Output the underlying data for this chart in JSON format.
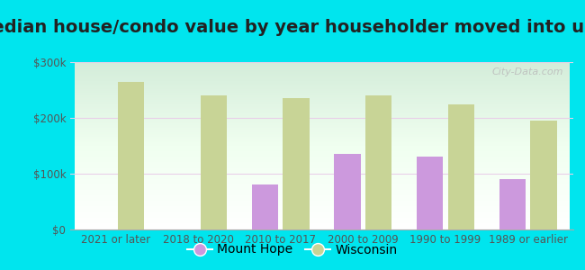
{
  "title": "Median house/condo value by year householder moved into unit",
  "categories": [
    "2021 or later",
    "2018 to 2020",
    "2010 to 2017",
    "2000 to 2009",
    "1990 to 1999",
    "1989 or earlier"
  ],
  "mount_hope": [
    null,
    null,
    80000,
    135000,
    130000,
    90000
  ],
  "wisconsin": [
    265000,
    240000,
    235000,
    240000,
    225000,
    195000
  ],
  "mount_hope_color": "#cc99dd",
  "wisconsin_color": "#c8d496",
  "background_outer": "#00e5ee",
  "ylim": [
    0,
    300000
  ],
  "yticks": [
    0,
    100000,
    200000,
    300000
  ],
  "ytick_labels": [
    "$0",
    "$100k",
    "$200k",
    "$300k"
  ],
  "bar_width": 0.32,
  "title_fontsize": 14,
  "tick_fontsize": 8.5,
  "legend_fontsize": 10,
  "watermark_text": "City-Data.com"
}
